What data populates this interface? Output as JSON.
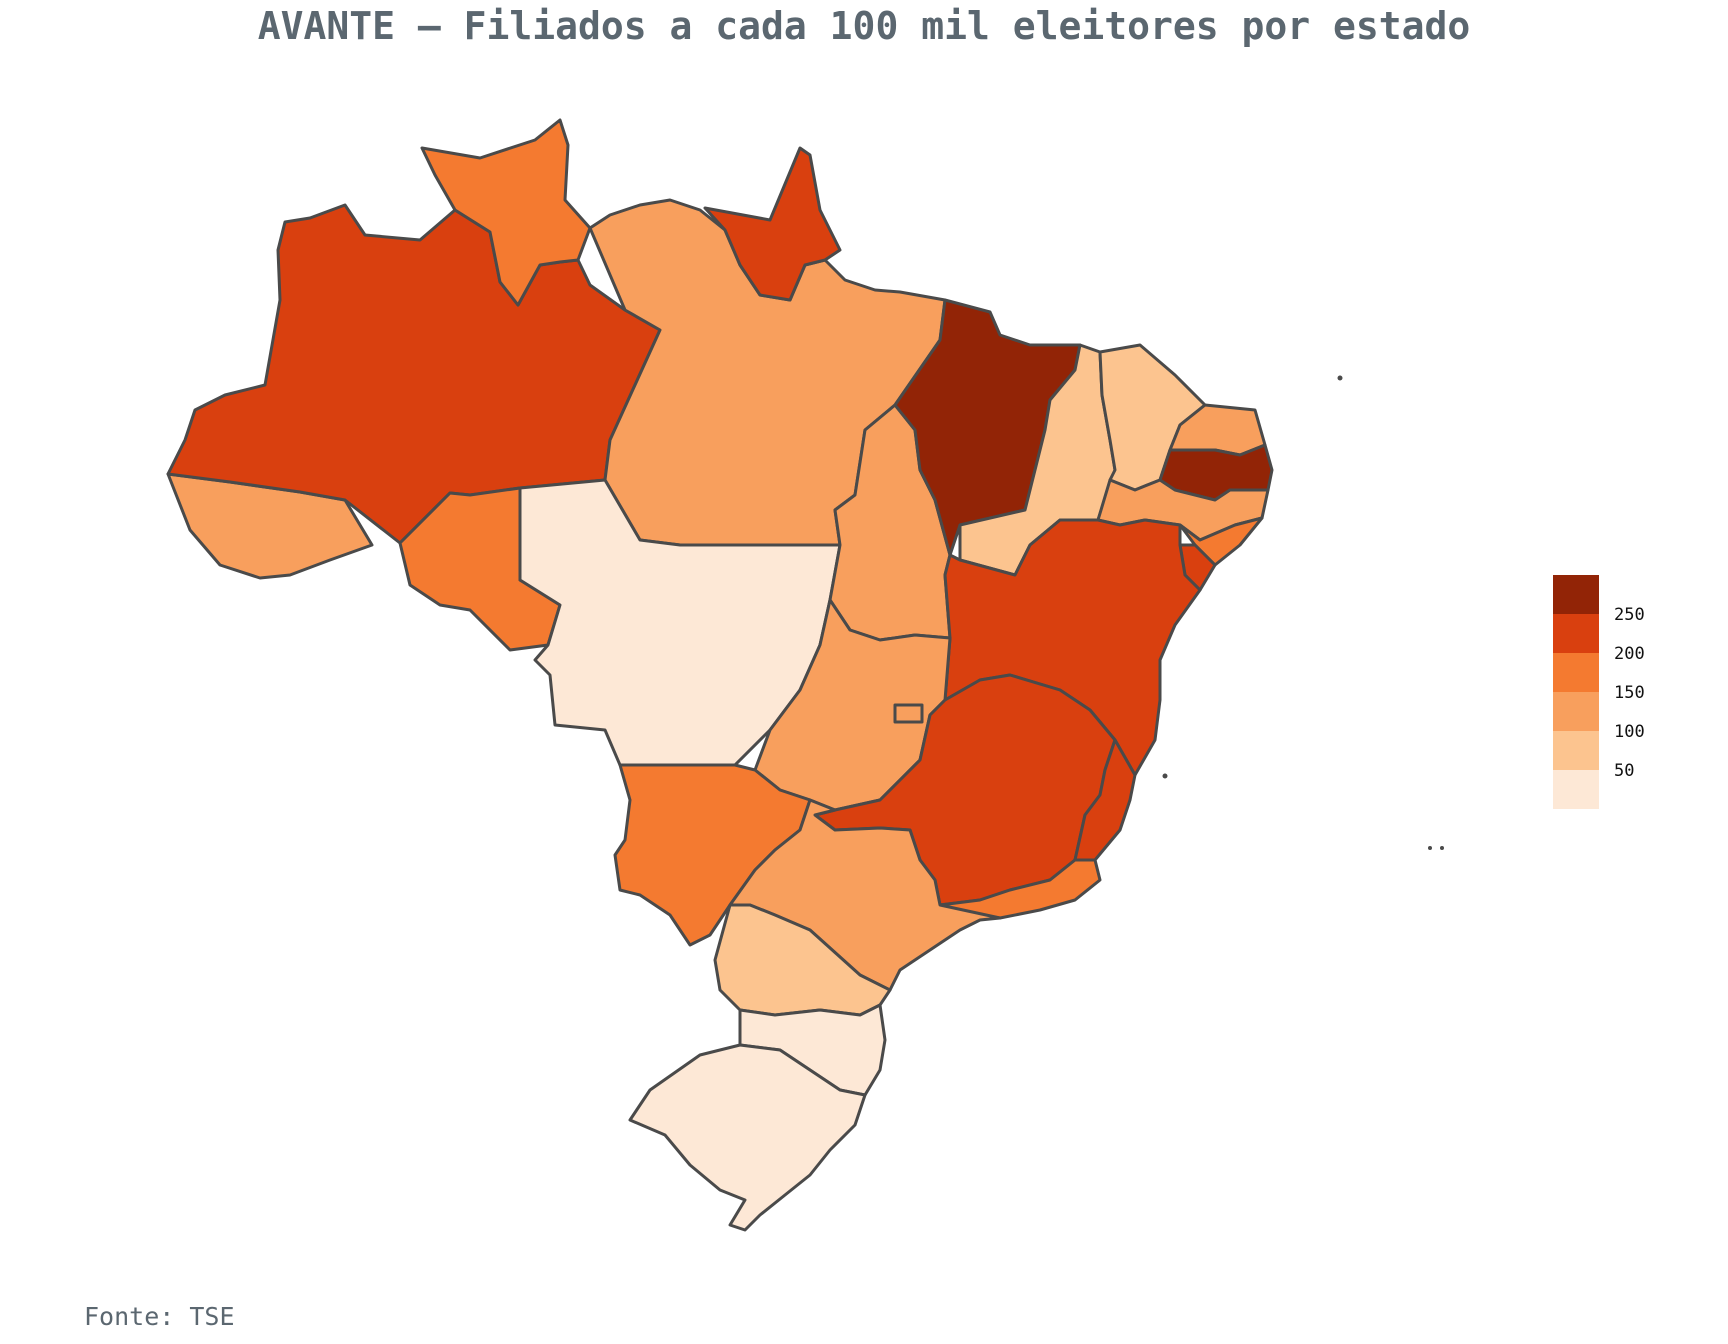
{
  "title": "AVANTE – Filiados a cada 100 mil eleitores por estado",
  "source": "Fonte: TSE",
  "legend": {
    "bins": [
      {
        "label": "",
        "color": "#922406"
      },
      {
        "label": "250",
        "color": "#d9400f"
      },
      {
        "label": "200",
        "color": "#f47a30"
      },
      {
        "label": "150",
        "color": "#f89f5d"
      },
      {
        "label": "100",
        "color": "#fcc48f"
      },
      {
        "label": "50",
        "color": "#fde8d6"
      }
    ]
  },
  "map_data": {
    "type": "choropleth",
    "region": "Brasil",
    "states": [
      {
        "name": "Acre",
        "color": "#f89f5d"
      },
      {
        "name": "Amazonas",
        "color": "#d9400f"
      },
      {
        "name": "Roraima",
        "color": "#f47a30"
      },
      {
        "name": "Pará",
        "color": "#f89f5d"
      },
      {
        "name": "Amapá",
        "color": "#d9400f"
      },
      {
        "name": "Rondônia",
        "color": "#f47a30"
      },
      {
        "name": "Mato Grosso",
        "color": "#fde8d6"
      },
      {
        "name": "Tocantins",
        "color": "#f89f5d"
      },
      {
        "name": "Maranhão",
        "color": "#922406"
      },
      {
        "name": "Piauí",
        "color": "#fcc48f"
      },
      {
        "name": "Ceará",
        "color": "#fcc48f"
      },
      {
        "name": "Rio Grande do Norte",
        "color": "#f89f5d"
      },
      {
        "name": "Paraíba",
        "color": "#922406"
      },
      {
        "name": "Pernambuco",
        "color": "#f89f5d"
      },
      {
        "name": "Alagoas",
        "color": "#f47a30"
      },
      {
        "name": "Sergipe",
        "color": "#d9400f"
      },
      {
        "name": "Bahia",
        "color": "#d9400f"
      },
      {
        "name": "Goiás",
        "color": "#f89f5d"
      },
      {
        "name": "Distrito Federal",
        "color": "#f89f5d"
      },
      {
        "name": "Minas Gerais",
        "color": "#d9400f"
      },
      {
        "name": "Espírito Santo",
        "color": "#d9400f"
      },
      {
        "name": "Rio de Janeiro",
        "color": "#f47a30"
      },
      {
        "name": "Mato Grosso do Sul",
        "color": "#f47a30"
      },
      {
        "name": "São Paulo",
        "color": "#f89f5d"
      },
      {
        "name": "Paraná",
        "color": "#fcc48f"
      },
      {
        "name": "Santa Catarina",
        "color": "#fde8d6"
      },
      {
        "name": "Rio Grande do Sul",
        "color": "#fde8d6"
      }
    ]
  }
}
